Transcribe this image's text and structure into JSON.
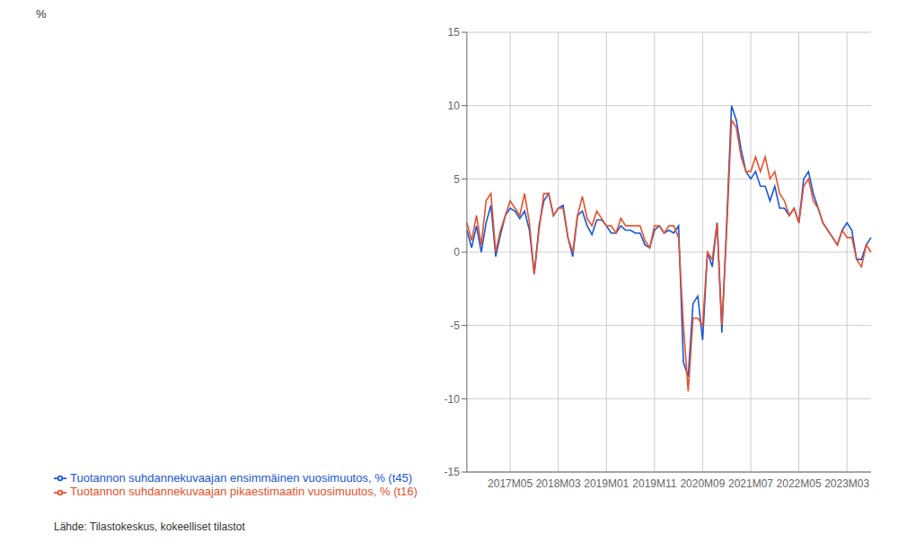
{
  "chart_data": {
    "type": "line",
    "ylabel": "%",
    "annotation": "Lähde: Tilastokeskus, kokeelliset tilastot",
    "categories": [
      null,
      null,
      null,
      null,
      null,
      null,
      null,
      null,
      null,
      "2017M05",
      null,
      null,
      null,
      null,
      null,
      null,
      null,
      null,
      null,
      "2018M03",
      null,
      null,
      null,
      null,
      null,
      null,
      null,
      null,
      null,
      "2019M01",
      null,
      null,
      null,
      null,
      null,
      null,
      null,
      null,
      null,
      "2019M11",
      null,
      null,
      null,
      null,
      null,
      null,
      null,
      null,
      null,
      "2020M09",
      null,
      null,
      null,
      null,
      null,
      null,
      null,
      null,
      null,
      "2021M07",
      null,
      null,
      null,
      null,
      null,
      null,
      null,
      null,
      null,
      "2022M05",
      null,
      null,
      null,
      null,
      null,
      null,
      null,
      null,
      null,
      "2023M03",
      null,
      null,
      null,
      null,
      null
    ],
    "series": [
      {
        "name": "Tuotannon suhdannekuvaajan ensimmäinen vuosimuutos, % (t45)",
        "color": "#1a56db",
        "values": [
          1.5,
          0.3,
          1.8,
          0.0,
          2.0,
          3.2,
          -0.3,
          1.2,
          2.5,
          3.0,
          2.8,
          2.3,
          2.8,
          1.5,
          -1.5,
          1.8,
          3.5,
          4.0,
          2.5,
          3.0,
          3.2,
          1.0,
          -0.3,
          2.5,
          2.8,
          1.8,
          1.2,
          2.2,
          2.2,
          1.8,
          1.3,
          1.3,
          1.8,
          1.5,
          1.5,
          1.3,
          1.3,
          0.5,
          0.3,
          1.5,
          1.8,
          1.3,
          1.5,
          1.3,
          1.8,
          -7.5,
          -8.5,
          -3.5,
          -3.0,
          -6.0,
          0.0,
          -1.0,
          2.0,
          -5.5,
          2.0,
          10.0,
          9.0,
          7.0,
          5.5,
          5.0,
          5.5,
          4.5,
          4.5,
          3.5,
          4.5,
          3.0,
          3.0,
          2.5,
          3.0,
          2.0,
          5.0,
          5.5,
          4.0,
          3.0,
          2.0,
          1.5,
          1.0,
          0.5,
          1.5,
          2.0,
          1.5,
          -0.5,
          -0.5,
          0.5,
          1.0
        ]
      },
      {
        "name": "Tuotannon suhdannekuvaajan pikaestimaatin vuosimuutos, % (t16)",
        "color": "#e8502a",
        "values": [
          2.0,
          0.8,
          2.5,
          0.5,
          3.5,
          4.0,
          0.0,
          1.5,
          2.5,
          3.5,
          3.0,
          2.5,
          4.0,
          2.0,
          -1.5,
          1.5,
          4.0,
          4.0,
          2.5,
          3.0,
          3.0,
          1.0,
          0.0,
          2.5,
          3.8,
          2.3,
          1.8,
          2.8,
          2.3,
          1.8,
          1.8,
          1.3,
          2.3,
          1.8,
          1.8,
          1.8,
          1.8,
          0.8,
          0.3,
          1.8,
          1.8,
          1.3,
          1.8,
          1.8,
          1.0,
          -5.0,
          -9.5,
          -4.5,
          -4.5,
          -5.0,
          0.0,
          -0.5,
          2.0,
          -5.0,
          1.5,
          9.0,
          8.5,
          6.5,
          5.5,
          5.5,
          6.5,
          5.5,
          6.5,
          5.0,
          5.5,
          4.0,
          3.5,
          2.5,
          3.0,
          2.0,
          4.5,
          5.0,
          3.5,
          3.0,
          2.0,
          1.5,
          1.0,
          0.5,
          1.5,
          1.0,
          1.0,
          -0.5,
          -1.0,
          0.5,
          0.0
        ]
      }
    ],
    "ylim": [
      -15,
      15
    ],
    "yticks": [
      -15,
      -10,
      -5,
      0,
      5,
      10,
      15
    ],
    "grid": true
  }
}
